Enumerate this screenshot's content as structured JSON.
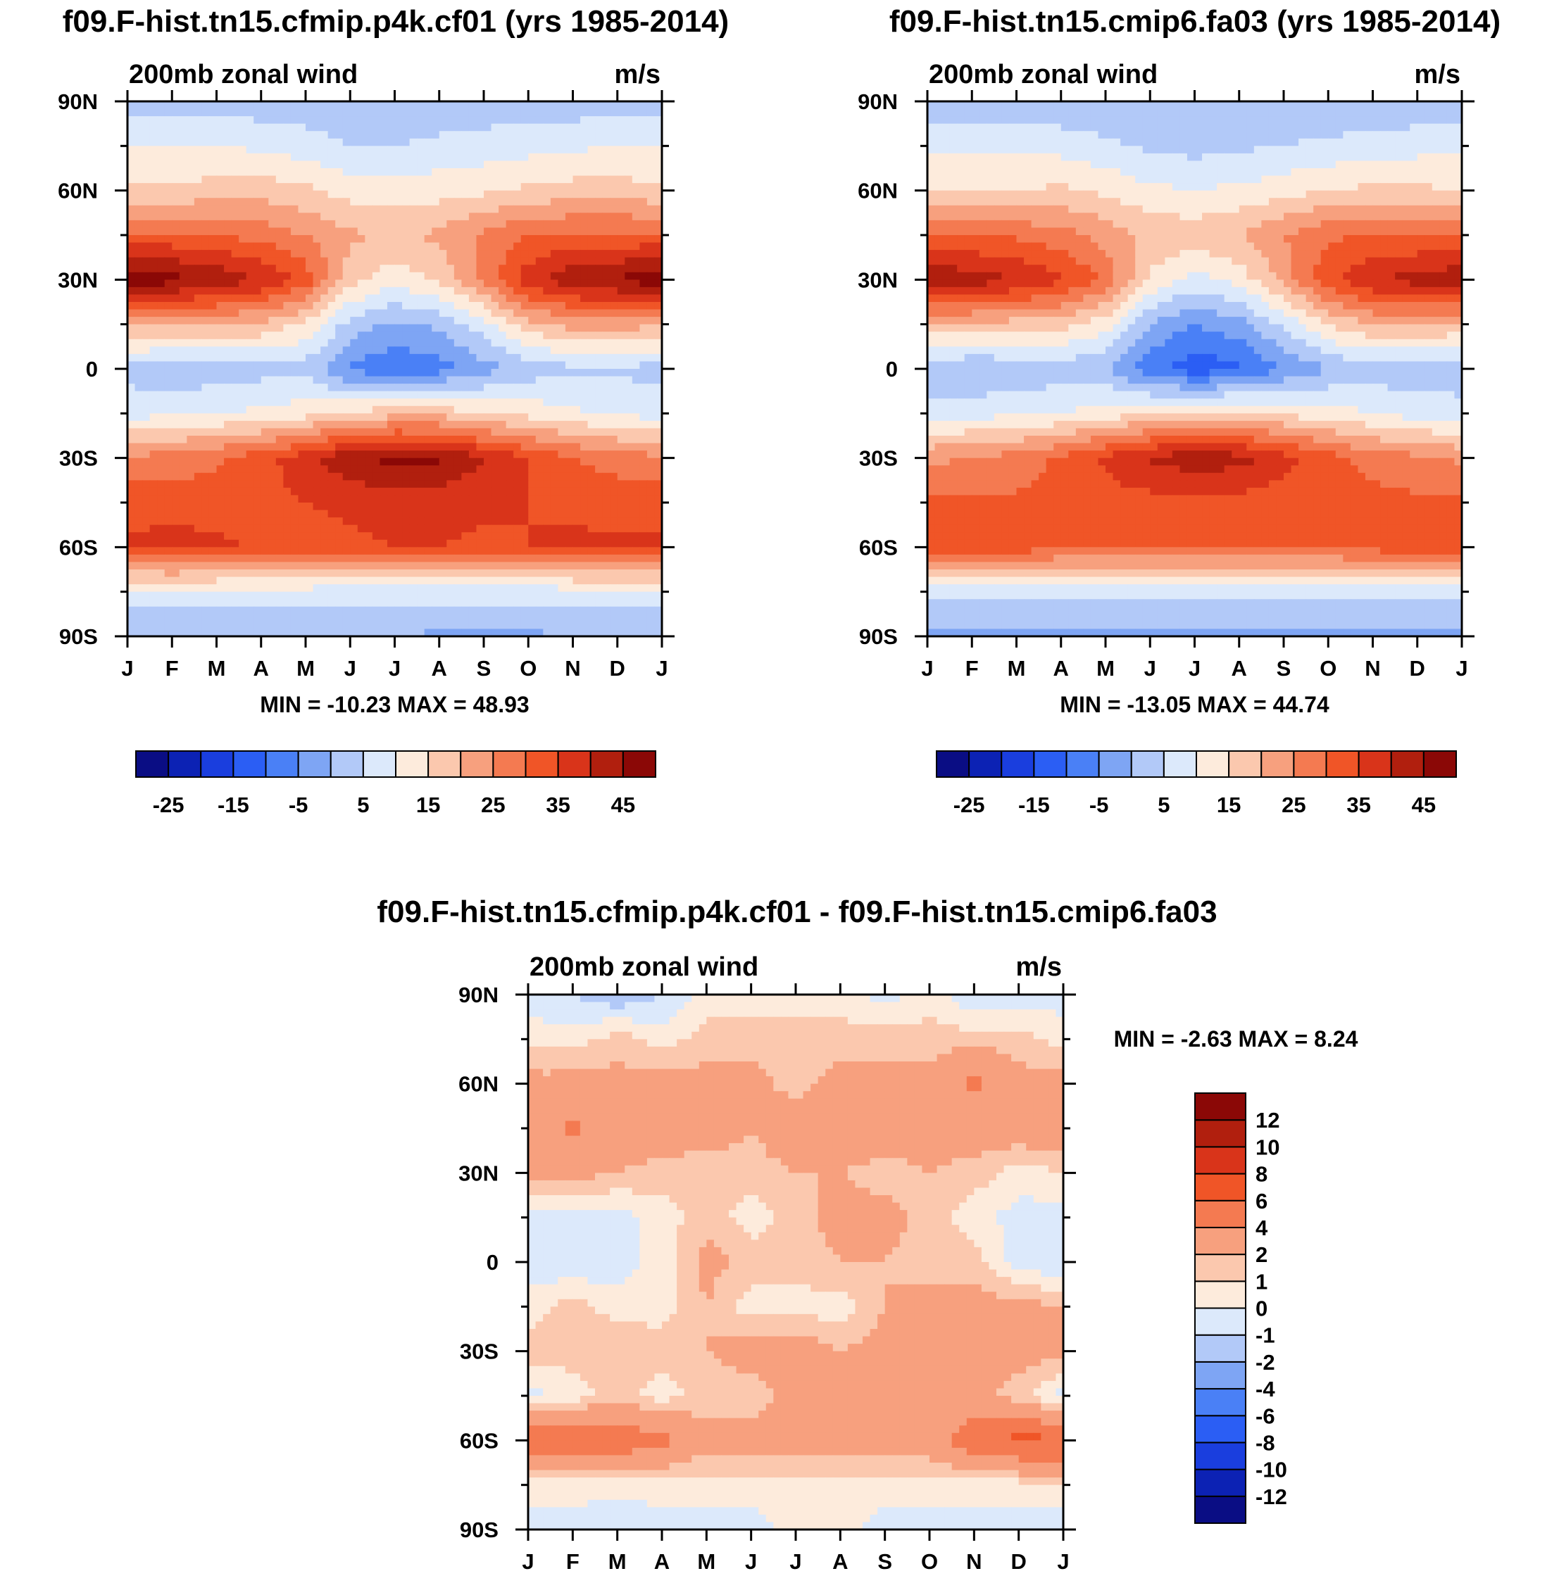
{
  "figure": {
    "month_labels": [
      "J",
      "F",
      "M",
      "A",
      "M",
      "J",
      "J",
      "A",
      "S",
      "O",
      "N",
      "D",
      "J"
    ],
    "lat_labels": [
      "90N",
      "60N",
      "30N",
      "0",
      "30S",
      "60S",
      "90S"
    ],
    "panels": [
      {
        "title": "f09.F-hist.tn15.cfmip.p4k.cf01 (yrs 1985-2014)",
        "left_label": "200mb zonal wind",
        "right_label": "m/s",
        "stats": "MIN = -10.23 MAX =  48.93"
      },
      {
        "title": "f09.F-hist.tn15.cmip6.fa03 (yrs 1985-2014)",
        "left_label": "200mb zonal wind",
        "right_label": "m/s",
        "stats": "MIN = -13.05 MAX =  44.74"
      },
      {
        "title": "f09.F-hist.tn15.cfmip.p4k.cf01 - f09.F-hist.tn15.cmip6.fa03",
        "left_label": "200mb zonal wind",
        "right_label": "m/s",
        "stats": "MIN =  -2.63 MAX =   8.24"
      }
    ],
    "colorbar_abs": {
      "colors": [
        "#0a0d84",
        "#0c22b4",
        "#1a3ede",
        "#2b5ef4",
        "#4a80f6",
        "#7ea5f4",
        "#b2c9f8",
        "#dce9fb",
        "#fdebdc",
        "#fbc8ae",
        "#f7a07e",
        "#f47a51",
        "#f05527",
        "#d9341a",
        "#b11f0e",
        "#8b0806"
      ],
      "tick_labels": [
        "-25",
        "-15",
        "-5",
        "5",
        "15",
        "25",
        "35",
        "45"
      ]
    },
    "colorbar_diff": {
      "colors": [
        "#0a0d84",
        "#0c22b4",
        "#1a3ede",
        "#2b5ef4",
        "#4a80f6",
        "#7ea5f4",
        "#b2c9f8",
        "#dce9fb",
        "#fdebdc",
        "#fbc8ae",
        "#f7a07e",
        "#f47a51",
        "#f05527",
        "#d9341a",
        "#b11f0e",
        "#8b0806"
      ],
      "tick_labels": [
        "-12",
        "-10",
        "-8",
        "-6",
        "-4",
        "-2",
        "-1",
        "0",
        "1",
        "2",
        "4",
        "6",
        "8",
        "10",
        "12"
      ]
    }
  },
  "chart_data": [
    {
      "type": "heatmap",
      "title": "f09.F-hist.tn15.cfmip.p4k.cf01 (yrs 1985-2014)",
      "subtitle": "200mb zonal wind",
      "units": "m/s",
      "x": [
        "J",
        "F",
        "M",
        "A",
        "M",
        "J",
        "J",
        "A",
        "S",
        "O",
        "N",
        "D",
        "J"
      ],
      "y": [
        90,
        75,
        60,
        45,
        30,
        15,
        0,
        -15,
        -30,
        -45,
        -60,
        -75,
        -90
      ],
      "xlabel": "",
      "ylabel": "",
      "levels": [
        -30,
        -25,
        -20,
        -15,
        -10,
        -5,
        0,
        5,
        10,
        15,
        20,
        25,
        30,
        35,
        40,
        45
      ],
      "min": -10.23,
      "max": 48.93,
      "values": [
        [
          2,
          2,
          2,
          2,
          2,
          2,
          2,
          2,
          2,
          2,
          2,
          2,
          2
        ],
        [
          10,
          10,
          10,
          9,
          7,
          5,
          5,
          6,
          7,
          8,
          9,
          10,
          10
        ],
        [
          16,
          16,
          17,
          18,
          16,
          13,
          12,
          13,
          14,
          16,
          17,
          17,
          16
        ],
        [
          31,
          31,
          30,
          28,
          25,
          21,
          19,
          21,
          26,
          30,
          31,
          31,
          31
        ],
        [
          48,
          47,
          44,
          40,
          33,
          17,
          12,
          16,
          26,
          38,
          44,
          46,
          48
        ],
        [
          21,
          21,
          20,
          19,
          14,
          3,
          -1,
          1,
          8,
          18,
          22,
          22,
          21
        ],
        [
          3,
          1,
          2,
          3,
          3,
          -6,
          -9,
          -7,
          -2,
          2,
          4,
          4,
          3
        ],
        [
          8,
          9,
          10,
          11,
          13,
          16,
          18,
          18,
          15,
          13,
          11,
          9,
          8
        ],
        [
          26,
          27,
          29,
          33,
          38,
          44,
          47,
          46,
          40,
          35,
          30,
          28,
          26
        ],
        [
          33,
          33,
          33,
          34,
          35,
          36,
          37,
          37,
          36,
          35,
          34,
          33,
          33
        ],
        [
          36,
          37,
          36,
          34,
          33,
          34,
          35,
          35,
          34,
          35,
          36,
          36,
          36
        ],
        [
          8,
          8,
          8,
          8,
          8,
          7,
          7,
          7,
          7,
          7,
          8,
          8,
          8
        ],
        [
          0,
          0,
          0,
          0,
          0,
          0,
          0,
          -1,
          -1,
          -1,
          0,
          0,
          0
        ]
      ]
    },
    {
      "type": "heatmap",
      "title": "f09.F-hist.tn15.cmip6.fa03 (yrs 1985-2014)",
      "subtitle": "200mb zonal wind",
      "units": "m/s",
      "x": [
        "J",
        "F",
        "M",
        "A",
        "M",
        "J",
        "J",
        "A",
        "S",
        "O",
        "N",
        "D",
        "J"
      ],
      "y": [
        90,
        75,
        60,
        45,
        30,
        15,
        0,
        -15,
        -30,
        -45,
        -60,
        -75,
        -90
      ],
      "xlabel": "",
      "ylabel": "",
      "levels": [
        -30,
        -25,
        -20,
        -15,
        -10,
        -5,
        0,
        5,
        10,
        15,
        20,
        25,
        30,
        35,
        40,
        45
      ],
      "min": -13.05,
      "max": 44.74,
      "values": [
        [
          1,
          1,
          1,
          1,
          1,
          1,
          1,
          1,
          1,
          1,
          1,
          1,
          1
        ],
        [
          9,
          9,
          9,
          8,
          6,
          4,
          3,
          4,
          5,
          6,
          7,
          8,
          9
        ],
        [
          15,
          15,
          15,
          16,
          14,
          11,
          10,
          11,
          13,
          15,
          16,
          16,
          15
        ],
        [
          30,
          30,
          29,
          27,
          23,
          19,
          18,
          20,
          25,
          29,
          30,
          30,
          30
        ],
        [
          44,
          43,
          40,
          36,
          29,
          14,
          8,
          12,
          22,
          34,
          40,
          42,
          44
        ],
        [
          19,
          19,
          18,
          17,
          12,
          0,
          -5,
          -2,
          6,
          16,
          20,
          20,
          19
        ],
        [
          2,
          0,
          1,
          2,
          1,
          -9,
          -13,
          -11,
          -5,
          0,
          2,
          2,
          2
        ],
        [
          7,
          8,
          9,
          10,
          12,
          15,
          17,
          17,
          14,
          12,
          10,
          8,
          7
        ],
        [
          24,
          25,
          27,
          31,
          36,
          41,
          43,
          42,
          37,
          32,
          28,
          26,
          24
        ],
        [
          31,
          31,
          31,
          32,
          33,
          33,
          33,
          33,
          32,
          32,
          32,
          31,
          31
        ],
        [
          33,
          34,
          33,
          31,
          30,
          30,
          30,
          30,
          30,
          31,
          32,
          33,
          33
        ],
        [
          6,
          6,
          6,
          6,
          6,
          6,
          6,
          6,
          6,
          6,
          6,
          6,
          6
        ],
        [
          -1,
          -1,
          -1,
          -1,
          -1,
          -1,
          -1,
          -1,
          -1,
          -1,
          -1,
          -1,
          -1
        ]
      ]
    },
    {
      "type": "heatmap",
      "title": "f09.F-hist.tn15.cfmip.p4k.cf01 - f09.F-hist.tn15.cmip6.fa03",
      "subtitle": "200mb zonal wind",
      "units": "m/s",
      "x": [
        "J",
        "F",
        "M",
        "A",
        "M",
        "J",
        "J",
        "A",
        "S",
        "O",
        "N",
        "D",
        "J"
      ],
      "y": [
        90,
        75,
        60,
        45,
        30,
        15,
        0,
        -15,
        -30,
        -45,
        -60,
        -75,
        -90
      ],
      "xlabel": "",
      "ylabel": "",
      "levels": [
        -14,
        -12,
        -10,
        -8,
        -6,
        -4,
        -2,
        -1,
        0,
        1,
        2,
        4,
        6,
        8,
        10,
        12
      ],
      "min": -2.63,
      "max": 8.24,
      "values": [
        [
          -0.5,
          -1,
          -2,
          -1,
          0.5,
          0.5,
          0.5,
          0.5,
          -0.5,
          0.5,
          -1,
          -0.5,
          -0.5
        ],
        [
          0.5,
          0.5,
          1.5,
          0.5,
          1.5,
          1.5,
          1.5,
          1.5,
          1.5,
          1.5,
          1.5,
          1.5,
          0.5
        ],
        [
          2.5,
          2.5,
          2.5,
          2.5,
          2.5,
          2.5,
          1.5,
          2.5,
          2.5,
          2.5,
          4.5,
          2.5,
          2.5
        ],
        [
          3,
          4.5,
          3,
          3,
          3,
          2,
          3,
          3,
          3,
          2.5,
          3,
          3,
          3
        ],
        [
          2.5,
          2.5,
          2,
          1.5,
          1,
          1.5,
          2,
          2,
          1.5,
          2,
          1.5,
          0.5,
          1
        ],
        [
          -0.5,
          -0.5,
          -0.5,
          0.5,
          1.5,
          0.5,
          1.5,
          2.5,
          2.5,
          1.5,
          0.5,
          -0.5,
          -0.5
        ],
        [
          -0.5,
          -1,
          -0.5,
          0.5,
          2.5,
          1.5,
          1.5,
          2,
          2,
          1.5,
          1.5,
          -0.5,
          -1
        ],
        [
          0.5,
          1.5,
          0.5,
          0.5,
          2,
          0.5,
          0.5,
          0.5,
          2,
          2.5,
          2.5,
          2.5,
          2
        ],
        [
          1.5,
          1.5,
          2,
          1.5,
          2,
          2.5,
          3,
          2,
          2.5,
          2.5,
          2.5,
          2.5,
          2.5
        ],
        [
          -0.5,
          0.5,
          1.5,
          0.5,
          1.5,
          1.5,
          2.5,
          2.5,
          2.5,
          2.5,
          2.5,
          1.5,
          -0.5
        ],
        [
          6.5,
          5.5,
          5.5,
          4.5,
          2.5,
          2.5,
          2.5,
          2.5,
          2.5,
          3,
          5.5,
          6.5,
          6.5
        ],
        [
          0.5,
          0.5,
          0.5,
          0.5,
          0.5,
          0.5,
          0.5,
          0.5,
          0.5,
          0.5,
          0.5,
          0.5,
          0.5
        ],
        [
          -0.5,
          -0.5,
          -1,
          -0.5,
          -0.5,
          -0.5,
          0.5,
          0.5,
          -0.5,
          -0.5,
          -0.5,
          -0.5,
          -0.5
        ]
      ]
    }
  ]
}
